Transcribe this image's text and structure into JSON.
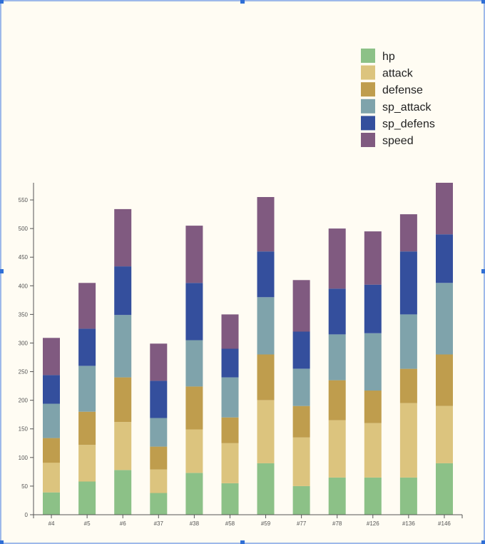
{
  "chart_data": {
    "type": "bar",
    "stacked": true,
    "categories": [
      "#4",
      "#5",
      "#6",
      "#37",
      "#38",
      "#58",
      "#59",
      "#77",
      "#78",
      "#126",
      "#136",
      "#146"
    ],
    "ylim": [
      0,
      580
    ],
    "yticks": [
      0,
      50,
      100,
      150,
      200,
      250,
      300,
      350,
      400,
      450,
      500,
      550
    ],
    "legend_position": "top-right",
    "background": "#fffcf3",
    "series": [
      {
        "name": "hp",
        "color": "#8cc187",
        "values": [
          39,
          58,
          78,
          38,
          73,
          55,
          90,
          50,
          65,
          65,
          65,
          90
        ]
      },
      {
        "name": "attack",
        "color": "#dcc47e",
        "values": [
          52,
          64,
          84,
          41,
          76,
          70,
          110,
          85,
          100,
          95,
          130,
          100
        ]
      },
      {
        "name": "defense",
        "color": "#bf9d4d",
        "values": [
          43,
          58,
          78,
          40,
          75,
          45,
          80,
          55,
          70,
          57,
          60,
          90
        ]
      },
      {
        "name": "sp_attack",
        "color": "#7fa3ab",
        "values": [
          60,
          80,
          109,
          50,
          81,
          70,
          100,
          65,
          80,
          100,
          95,
          125
        ]
      },
      {
        "name": "sp_defens",
        "color": "#344f9d",
        "values": [
          50,
          65,
          85,
          65,
          100,
          50,
          80,
          65,
          80,
          85,
          110,
          85
        ]
      },
      {
        "name": "speed",
        "color": "#805a80",
        "values": [
          65,
          80,
          100,
          65,
          100,
          60,
          95,
          90,
          105,
          93,
          65,
          90
        ]
      }
    ]
  }
}
